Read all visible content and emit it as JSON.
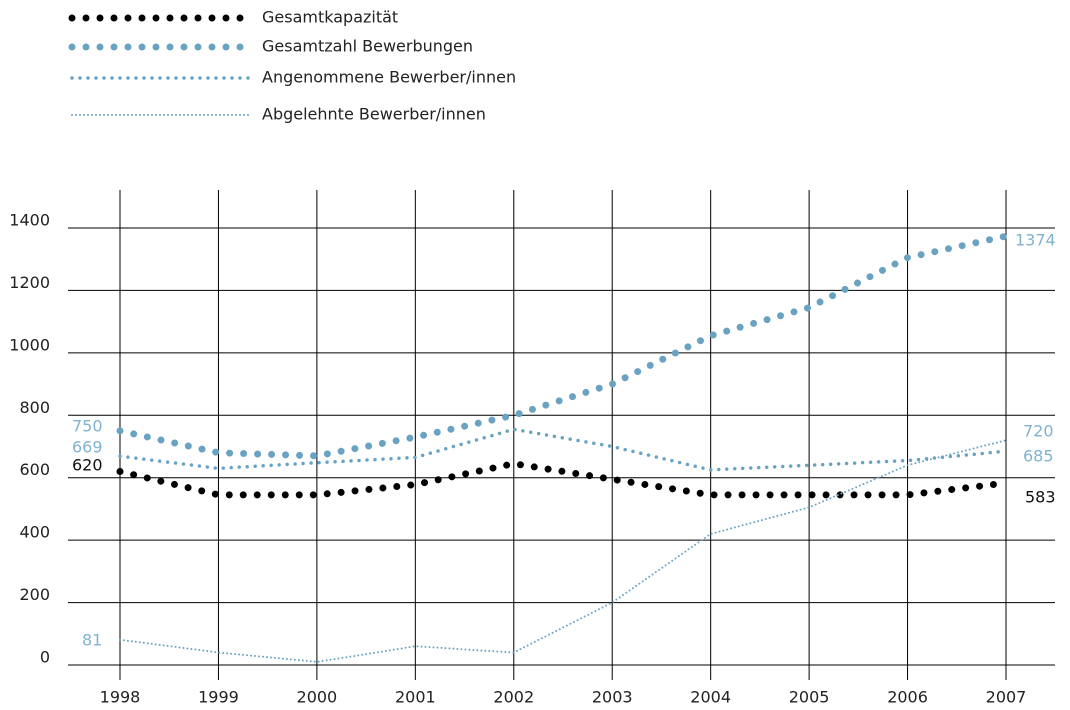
{
  "chart_data": {
    "type": "line",
    "x": [
      1998,
      1999,
      2000,
      2001,
      2002,
      2003,
      2004,
      2005,
      2006,
      2007
    ],
    "series": [
      {
        "name": "Gesamtkapazität",
        "color": "#000000",
        "values": [
          620,
          545,
          545,
          578,
          645,
          595,
          545,
          545,
          545,
          583
        ]
      },
      {
        "name": "Gesamtzahl Bewerbungen",
        "color": "#6aa3c2",
        "values": [
          750,
          680,
          670,
          730,
          800,
          900,
          1055,
          1145,
          1305,
          1374
        ]
      },
      {
        "name": "Angenommene Bewerber/innen",
        "color": "#6aa3c2",
        "values": [
          669,
          630,
          648,
          665,
          755,
          700,
          625,
          640,
          655,
          685
        ]
      },
      {
        "name": "Abgelehnte Bewerber/innen",
        "color": "#6aa3c2",
        "values": [
          81,
          40,
          10,
          60,
          40,
          200,
          420,
          505,
          640,
          720
        ]
      }
    ],
    "xlim": [
      1998,
      2007
    ],
    "ylim": [
      0,
      1400
    ],
    "yticks": [
      0,
      200,
      400,
      600,
      800,
      1000,
      1200,
      1400
    ],
    "grid": true,
    "legend": "top-left"
  }
}
